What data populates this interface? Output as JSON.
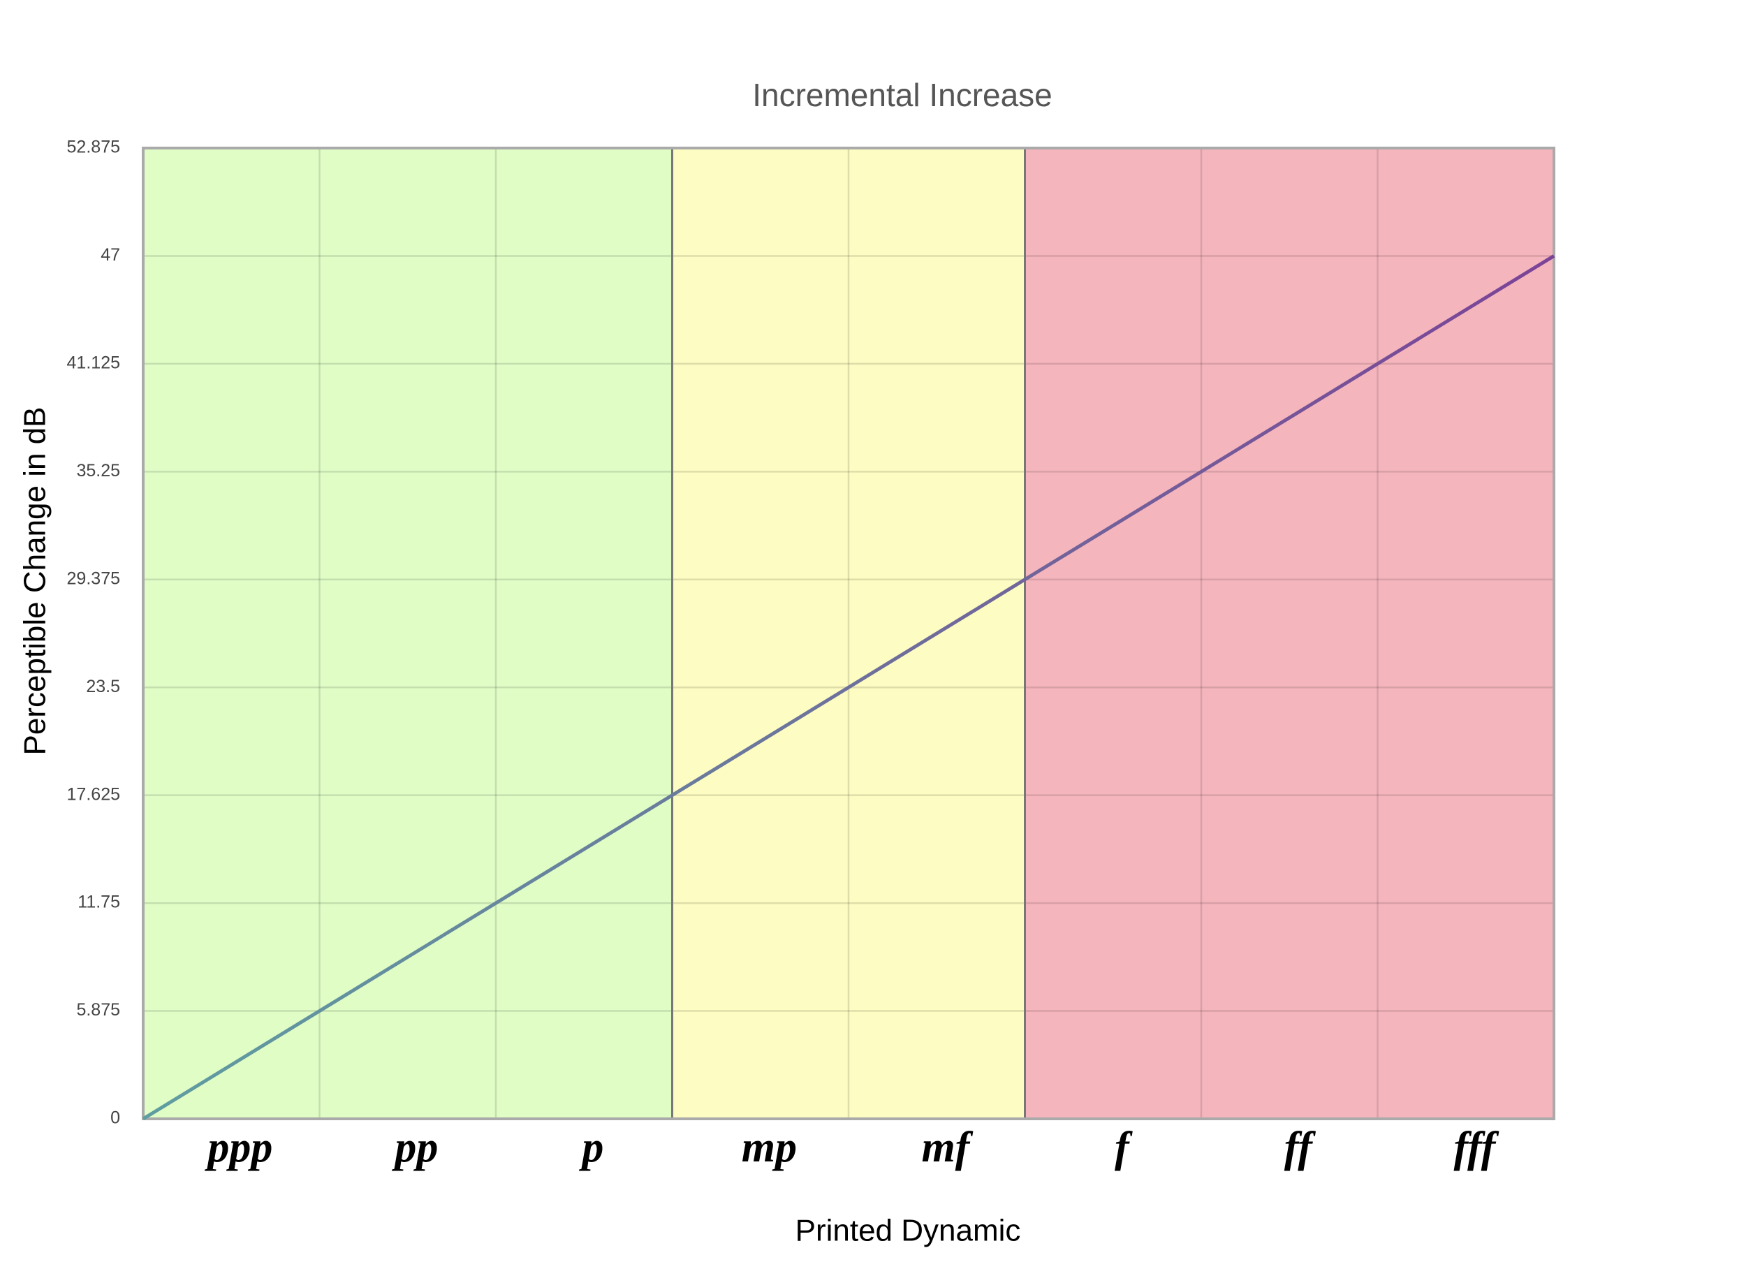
{
  "chart_data": {
    "type": "line",
    "title": "Incremental Increase",
    "x_label": "Printed Dynamic",
    "y_label": "Perceptible Change in dB",
    "categories": [
      "ppp",
      "pp",
      "p",
      "mp",
      "mf",
      "f",
      "ff",
      "fff"
    ],
    "x": [
      0,
      1,
      2,
      3,
      4,
      5,
      6,
      7,
      8
    ],
    "series": [
      {
        "values": [
          0,
          5.875,
          11.75,
          17.625,
          23.5,
          29.375,
          35.25,
          41.125,
          47
        ],
        "gradient": [
          "#5f9ea0",
          "#7b4397"
        ]
      }
    ],
    "xlim": [
      0,
      8
    ],
    "ylim": [
      0,
      52.875
    ],
    "yticks": [
      0,
      5.875,
      11.75,
      17.625,
      23.5,
      29.375,
      35.25,
      41.125,
      47,
      52.875
    ],
    "grid": true,
    "zones": [
      {
        "from": 0,
        "to": 3,
        "color": "#e0fdc6"
      },
      {
        "from": 3,
        "to": 5,
        "color": "#fdfcc2"
      },
      {
        "from": 5,
        "to": 8,
        "color": "#f5b5bd"
      }
    ]
  }
}
